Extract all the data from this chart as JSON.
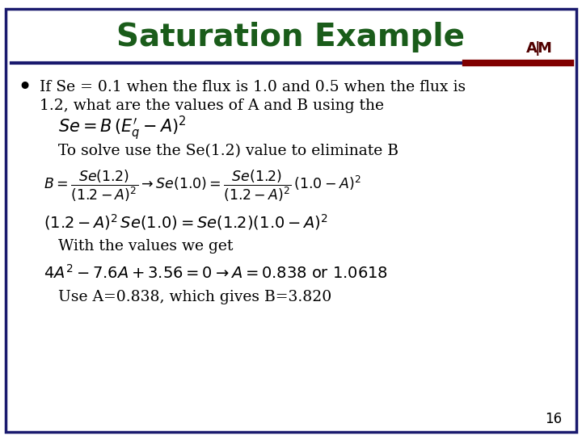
{
  "title": "Saturation Example",
  "title_color": "#1a5c1a",
  "title_fontsize": 28,
  "bg_color": "#ffffff",
  "border_color": "#1a1a6e",
  "text_color": "#000000",
  "bullet_color": "#000000",
  "page_number": "16",
  "tamu_color": "#500000",
  "line1": "If Se = 0.1 when the flux is 1.0 and 0.5 when the flux is",
  "line2": "1.2, what are the values of A and B using the",
  "formula1": "$Se = B\\,(E^{\\prime}_{q} - A)^{2}$",
  "line3": "To solve use the Se(1.2) value to eliminate B",
  "formula2": "$B = \\dfrac{Se(1.2)}{(1.2 - A)^{2}} \\rightarrow Se(1.0) = \\dfrac{Se(1.2)}{(1.2 - A)^{2}}\\,(1.0 - A)^{2}$",
  "formula3": "$(1.2 - A)^{2}\\,Se(1.0) = Se(1.2)(1.0 - A)^{2}$",
  "line4": "With the values we get",
  "formula4": "$4A^{2} - 7.6A + 3.56 = 0 \\rightarrow A = 0.838\\text{ or }1.0618$",
  "line5": "Use A=0.838, which gives B=3.820"
}
